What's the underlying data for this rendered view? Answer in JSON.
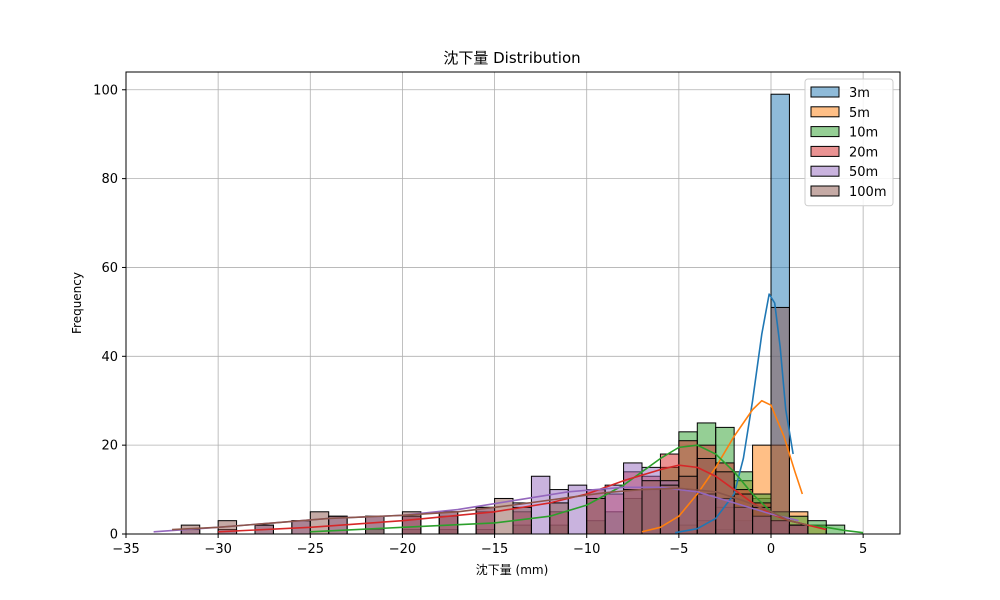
{
  "chart_data": {
    "type": "histogram",
    "title": "沈下量 Distribution",
    "xlabel": "沈下量 (mm)",
    "ylabel": "Frequency",
    "xlim": [
      -35,
      7
    ],
    "ylim": [
      0,
      104
    ],
    "xticks": [
      -35,
      -30,
      -25,
      -20,
      -15,
      -10,
      -5,
      0,
      5
    ],
    "yticks": [
      0,
      20,
      40,
      60,
      80,
      100
    ],
    "grid": true,
    "legend_position": "top-right",
    "bin_width": 1,
    "series": [
      {
        "name": "3m",
        "color": "#1f77b4",
        "bins": [
          [
            -3,
            1
          ],
          [
            -2,
            3
          ],
          [
            -1,
            8
          ],
          [
            0,
            99
          ]
        ],
        "kde": [
          [
            -5.2,
            0.3
          ],
          [
            -4,
            1.2
          ],
          [
            -3,
            3.5
          ],
          [
            -2,
            9
          ],
          [
            -1.5,
            17
          ],
          [
            -1,
            30
          ],
          [
            -0.5,
            45
          ],
          [
            -0.1,
            54
          ],
          [
            0.2,
            52
          ],
          [
            0.5,
            42
          ],
          [
            0.8,
            28
          ],
          [
            1.2,
            18
          ]
        ]
      },
      {
        "name": "5m",
        "color": "#ff7f0e",
        "bins": [
          [
            -5,
            2
          ],
          [
            -4,
            3
          ],
          [
            -3,
            6
          ],
          [
            -2,
            12
          ],
          [
            -1,
            20
          ],
          [
            0,
            20
          ],
          [
            1,
            5
          ],
          [
            2,
            2
          ]
        ],
        "kde": [
          [
            -7,
            0.5
          ],
          [
            -6,
            1.5
          ],
          [
            -5,
            4
          ],
          [
            -4,
            9
          ],
          [
            -3,
            15
          ],
          [
            -2,
            22
          ],
          [
            -1,
            28
          ],
          [
            -0.5,
            30
          ],
          [
            0,
            29
          ],
          [
            0.7,
            22
          ],
          [
            1.3,
            14
          ],
          [
            1.7,
            9
          ]
        ]
      },
      {
        "name": "10m",
        "color": "#2ca02c",
        "bins": [
          [
            -22,
            1
          ],
          [
            -20,
            1
          ],
          [
            -18,
            1
          ],
          [
            -16,
            1
          ],
          [
            -14,
            2
          ],
          [
            -12,
            2
          ],
          [
            -10,
            3
          ],
          [
            -9,
            5
          ],
          [
            -8,
            8
          ],
          [
            -7,
            10
          ],
          [
            -6,
            15
          ],
          [
            -5,
            23
          ],
          [
            -4,
            25
          ],
          [
            -3,
            24
          ],
          [
            -2,
            14
          ],
          [
            -1,
            9
          ],
          [
            0,
            5
          ],
          [
            1,
            4
          ],
          [
            2,
            3
          ],
          [
            3,
            2
          ]
        ],
        "kde": [
          [
            -25,
            0.5
          ],
          [
            -20,
            1.5
          ],
          [
            -15,
            2.5
          ],
          [
            -12,
            4
          ],
          [
            -10,
            6.5
          ],
          [
            -8,
            11
          ],
          [
            -6,
            17
          ],
          [
            -5,
            19.5
          ],
          [
            -4,
            20
          ],
          [
            -3,
            18
          ],
          [
            -2,
            14
          ],
          [
            -1,
            9
          ],
          [
            0,
            5
          ],
          [
            1,
            3
          ],
          [
            2,
            2
          ],
          [
            3,
            1.5
          ],
          [
            4,
            0.8
          ],
          [
            5,
            0.3
          ]
        ]
      },
      {
        "name": "20m",
        "color": "#d62728",
        "bins": [
          [
            -20,
            4
          ],
          [
            -18,
            4
          ],
          [
            -16,
            5
          ],
          [
            -14,
            5
          ],
          [
            -12,
            5
          ],
          [
            -10,
            10
          ],
          [
            -9,
            9
          ],
          [
            -8,
            14
          ],
          [
            -7,
            13
          ],
          [
            -6,
            18
          ],
          [
            -5,
            21
          ],
          [
            -4,
            20
          ],
          [
            -3,
            16
          ],
          [
            -2,
            10
          ],
          [
            -1,
            7
          ],
          [
            0,
            3
          ],
          [
            1,
            2
          ]
        ],
        "kde": [
          [
            -30,
            0.5
          ],
          [
            -25,
            1.5
          ],
          [
            -20,
            3
          ],
          [
            -15,
            5
          ],
          [
            -12,
            7
          ],
          [
            -10,
            9
          ],
          [
            -8,
            12
          ],
          [
            -6,
            14.5
          ],
          [
            -5,
            15.5
          ],
          [
            -4,
            15
          ],
          [
            -3,
            13
          ],
          [
            -2,
            10
          ],
          [
            -1,
            7
          ],
          [
            0,
            4.5
          ],
          [
            1,
            3
          ],
          [
            2,
            2
          ],
          [
            3,
            1
          ]
        ]
      },
      {
        "name": "50m",
        "color": "#9467bd",
        "bins": [
          [
            -32,
            1
          ],
          [
            -30,
            1
          ],
          [
            -28,
            2
          ],
          [
            -26,
            3
          ],
          [
            -24,
            4
          ],
          [
            -22,
            4
          ],
          [
            -20,
            4
          ],
          [
            -18,
            5
          ],
          [
            -16,
            6
          ],
          [
            -14,
            7
          ],
          [
            -13,
            13
          ],
          [
            -12,
            10
          ],
          [
            -11,
            11
          ],
          [
            -10,
            10
          ],
          [
            -9,
            11
          ],
          [
            -8,
            16
          ],
          [
            -7,
            15
          ],
          [
            -6,
            12
          ],
          [
            -5,
            10
          ],
          [
            -4,
            9
          ],
          [
            -3,
            8
          ],
          [
            -2,
            6
          ],
          [
            -1,
            4
          ],
          [
            0,
            3
          ],
          [
            1,
            2
          ]
        ],
        "kde": [
          [
            -33.5,
            0.5
          ],
          [
            -30,
            1.5
          ],
          [
            -27,
            2.5
          ],
          [
            -24,
            3.5
          ],
          [
            -20,
            4.2
          ],
          [
            -17,
            5.5
          ],
          [
            -14,
            7.5
          ],
          [
            -11,
            9.5
          ],
          [
            -8,
            10.5
          ],
          [
            -6,
            10.5
          ],
          [
            -4,
            9.5
          ],
          [
            -2,
            7
          ],
          [
            0,
            4.5
          ],
          [
            1.5,
            3
          ]
        ]
      },
      {
        "name": "100m",
        "color": "#8c564b",
        "bins": [
          [
            -32,
            2
          ],
          [
            -30,
            3
          ],
          [
            -28,
            2
          ],
          [
            -26,
            3
          ],
          [
            -25,
            5
          ],
          [
            -24,
            4
          ],
          [
            -22,
            4
          ],
          [
            -20,
            5
          ],
          [
            -18,
            5
          ],
          [
            -16,
            6
          ],
          [
            -15,
            8
          ],
          [
            -14,
            6
          ],
          [
            -12,
            7
          ],
          [
            -10,
            8
          ],
          [
            -8,
            10
          ],
          [
            -7,
            12
          ],
          [
            -6,
            11
          ],
          [
            -5,
            13
          ],
          [
            -4,
            17
          ],
          [
            -3,
            14
          ],
          [
            -2,
            9
          ],
          [
            -1,
            6
          ],
          [
            0,
            51
          ],
          [
            1,
            2
          ]
        ],
        "kde": [
          [
            -32.5,
            1
          ],
          [
            -30,
            1.5
          ],
          [
            -27,
            2.5
          ],
          [
            -24,
            3.5
          ],
          [
            -20,
            4.2
          ],
          [
            -17,
            5
          ],
          [
            -14,
            6.5
          ],
          [
            -11,
            8.2
          ],
          [
            -9,
            9.3
          ],
          [
            -7,
            10
          ],
          [
            -5,
            10.3
          ],
          [
            -3,
            9.5
          ],
          [
            -1.5,
            7.5
          ],
          [
            0,
            5
          ],
          [
            1,
            3
          ],
          [
            2,
            2
          ]
        ]
      }
    ]
  }
}
